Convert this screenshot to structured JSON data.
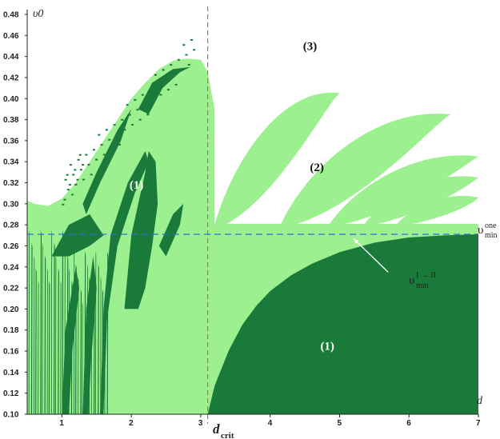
{
  "chart_data": {
    "type": "area",
    "title": "",
    "xlabel": "d",
    "ylabel": "υ0",
    "xlim": [
      0.5,
      7
    ],
    "ylim": [
      0.1,
      0.48
    ],
    "x_ticks": [
      1,
      2,
      3,
      4,
      5,
      6,
      7
    ],
    "y_ticks": [
      0.1,
      0.12,
      0.14,
      0.16,
      0.18,
      0.2,
      0.22,
      0.24,
      0.26,
      0.28,
      0.3,
      0.32,
      0.34,
      0.36,
      0.38,
      0.4,
      0.42,
      0.44,
      0.46,
      0.48
    ],
    "y_tick_labels": [
      "0.10",
      "0.12",
      "0.14",
      "0.16",
      "0.18",
      "0.20",
      "0.22",
      "0.24",
      "0.26",
      "0.28",
      "0.30",
      "0.32",
      "0.34",
      "0.36",
      "0.38",
      "0.40",
      "0.42",
      "0.44",
      "0.46",
      "0.48"
    ],
    "colors": {
      "region1": "#1a7a3a",
      "region2": "#9cf08f",
      "region3": "#ffffff",
      "vline": "#e05a5a",
      "hline": "#2a6fd6"
    },
    "regions": {
      "left_dome": {
        "x": [
          0.5,
          0.6,
          0.8,
          1.0,
          1.2,
          1.4,
          1.6,
          1.8,
          2.0,
          2.2,
          2.4,
          2.6,
          2.8,
          3.0,
          3.1,
          3.2,
          3.2
        ],
        "y_top": [
          0.303,
          0.3,
          0.298,
          0.305,
          0.32,
          0.34,
          0.36,
          0.38,
          0.4,
          0.415,
          0.428,
          0.436,
          0.438,
          0.437,
          0.425,
          0.39,
          0.28
        ]
      },
      "dark_lower": {
        "x": [
          3.1,
          3.2,
          3.4,
          3.6,
          3.8,
          4.0,
          4.3,
          4.6,
          5.0,
          5.5,
          6.0,
          6.5,
          7.0
        ],
        "y_top": [
          0.1,
          0.127,
          0.16,
          0.185,
          0.203,
          0.217,
          0.232,
          0.243,
          0.254,
          0.263,
          0.268,
          0.27,
          0.271
        ]
      },
      "lobes": [
        {
          "x_base": 3.2,
          "y_base": 0.28,
          "x_tip": 5.0,
          "y_tip": 0.405
        },
        {
          "x_base": 4.15,
          "y_base": 0.28,
          "x_tip": 6.6,
          "y_tip": 0.385
        },
        {
          "x_base": 4.85,
          "y_base": 0.28,
          "x_tip": 7.0,
          "y_tip": 0.345
        },
        {
          "x_base": 5.35,
          "y_base": 0.28,
          "x_tip": 7.0,
          "y_tip": 0.325
        },
        {
          "x_base": 5.8,
          "y_base": 0.279,
          "x_tip": 7.0,
          "y_tip": 0.306
        }
      ]
    },
    "d_crit": 3.1,
    "v_min_one": 0.271,
    "region_labels": [
      {
        "text": "(1)",
        "x": 2.1,
        "y": 0.318
      },
      {
        "text": "(2)",
        "x": 4.7,
        "y": 0.335
      },
      {
        "text": "(3)",
        "x": 4.6,
        "y": 0.45
      },
      {
        "text": "(1)",
        "x": 4.85,
        "y": 0.165
      }
    ],
    "annotations": {
      "vmin_one_main": "υ",
      "vmin_one_sup": "one",
      "vmin_one_sub": "min",
      "vmin_I_II_main": "υ",
      "vmin_I_II_sup": "I → II",
      "vmin_I_II_sub": "min",
      "dcrit_main": "d",
      "dcrit_sub": "crit",
      "arrow_from": {
        "x": 5.7,
        "y": 0.235
      },
      "arrow_to": {
        "x": 5.2,
        "y": 0.267
      }
    }
  }
}
